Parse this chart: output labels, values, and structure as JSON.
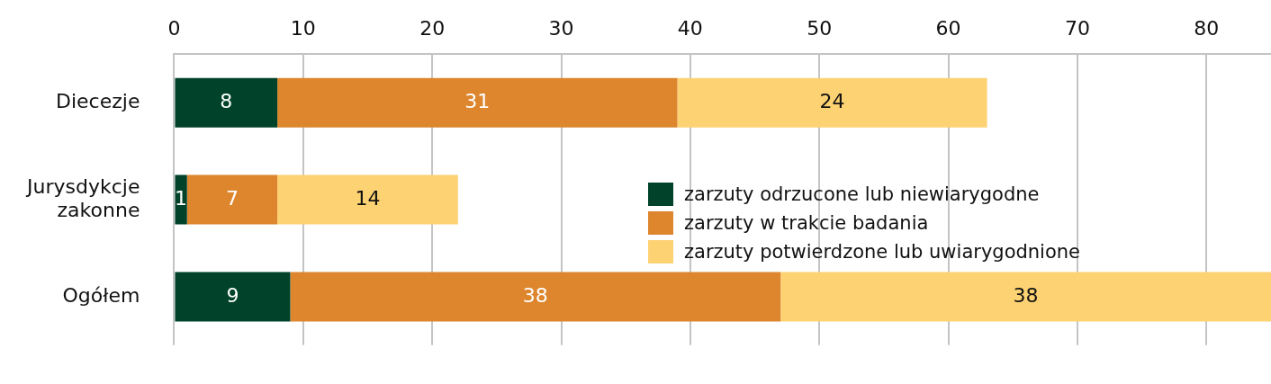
{
  "chart_data": {
    "type": "bar",
    "orientation": "horizontal",
    "stacked": true,
    "categories": [
      "Diecezje",
      "Jurysdykcje zakonne",
      "Ogółem"
    ],
    "series": [
      {
        "name": "zarzuty odrzucone lub niewiarygodne",
        "color": "#00432a",
        "values": [
          8,
          1,
          9
        ]
      },
      {
        "name": "zarzuty w trakcie badania",
        "color": "#dd862e",
        "values": [
          31,
          7,
          38
        ]
      },
      {
        "name": "zarzuty potwierdzone lub uwiarygodnione",
        "color": "#fdd273",
        "values": [
          24,
          14,
          38
        ]
      }
    ],
    "xlim": [
      0,
      85
    ],
    "xticks": [
      0,
      10,
      20,
      30,
      40,
      50,
      60,
      70,
      80
    ],
    "grid": "x",
    "legend": "right",
    "data_labels": true
  }
}
